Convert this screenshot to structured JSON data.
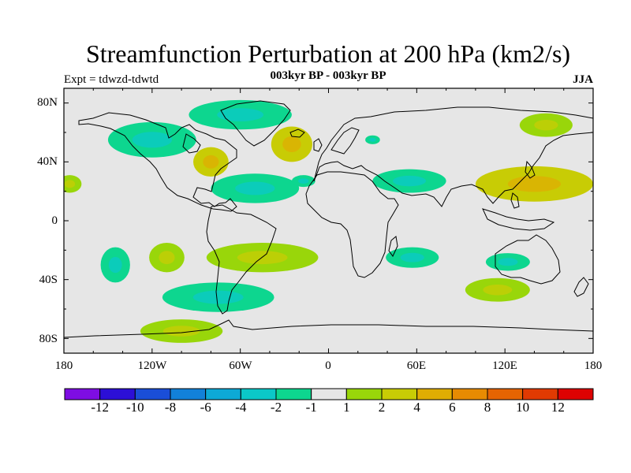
{
  "title": "Streamfunction Perturbation at 200 hPa (km2/s)",
  "left_label": "Expt = tdwzd-tdwtd",
  "center_label": "003kyr BP - 003kyr BP",
  "right_label": "JJA",
  "lat_ticks": [
    "80N",
    "40N",
    "0",
    "40S",
    "80S"
  ],
  "lon_ticks": [
    "180",
    "120W",
    "60W",
    "0",
    "60E",
    "120E",
    "180"
  ],
  "colorbar": {
    "colors": [
      "#7e0de3",
      "#2c0fd6",
      "#1a4ed8",
      "#1281d9",
      "#0da9d6",
      "#0bc8c8",
      "#0dd68f",
      "#e6e6e6",
      "#99d60a",
      "#c8cc05",
      "#dfad03",
      "#e78b02",
      "#e66402",
      "#e13a02",
      "#dd0202"
    ],
    "labels": [
      "-12",
      "-10",
      "-8",
      "-6",
      "-4",
      "-2",
      "-1",
      "1",
      "2",
      "4",
      "6",
      "8",
      "10",
      "12"
    ]
  },
  "background_color": "#e6e6e6",
  "chart_data": {
    "type": "map",
    "title": "Streamfunction Perturbation at 200 hPa (km2/s)",
    "subtitle": "003kyr BP - 003kyr BP",
    "season": "JJA",
    "xlim": [
      -180,
      180
    ],
    "ylim": [
      -90,
      90
    ],
    "levels": [
      -12,
      -10,
      -8,
      -6,
      -4,
      -2,
      -1,
      1,
      2,
      4,
      6,
      8,
      10,
      12
    ],
    "anomalies": [
      {
        "lon": -120,
        "lat": 55,
        "rx": 30,
        "ry": 12,
        "bin": -1
      },
      {
        "lon": -60,
        "lat": 72,
        "rx": 35,
        "ry": 10,
        "bin": -1
      },
      {
        "lon": -80,
        "lat": 40,
        "rx": 12,
        "ry": 10,
        "bin": 2
      },
      {
        "lon": -25,
        "lat": 52,
        "rx": 14,
        "ry": 12,
        "bin": 2
      },
      {
        "lon": -50,
        "lat": 22,
        "rx": 30,
        "ry": 10,
        "bin": -1
      },
      {
        "lon": -17,
        "lat": 27,
        "rx": 8,
        "ry": 4,
        "bin": -1
      },
      {
        "lon": 30,
        "lat": 55,
        "rx": 5,
        "ry": 3,
        "bin": -1
      },
      {
        "lon": 55,
        "lat": 27,
        "rx": 25,
        "ry": 8,
        "bin": -1
      },
      {
        "lon": 148,
        "lat": 65,
        "rx": 18,
        "ry": 8,
        "bin": 1
      },
      {
        "lon": 140,
        "lat": 25,
        "rx": 40,
        "ry": 12,
        "bin": 2
      },
      {
        "lon": -176,
        "lat": 25,
        "rx": 8,
        "ry": 6,
        "bin": 1
      },
      {
        "lon": -145,
        "lat": -30,
        "rx": 10,
        "ry": 12,
        "bin": -1
      },
      {
        "lon": -110,
        "lat": -25,
        "rx": 12,
        "ry": 10,
        "bin": 1
      },
      {
        "lon": -45,
        "lat": -25,
        "rx": 38,
        "ry": 10,
        "bin": 1
      },
      {
        "lon": 57,
        "lat": -25,
        "rx": 18,
        "ry": 7,
        "bin": -1
      },
      {
        "lon": 122,
        "lat": -28,
        "rx": 15,
        "ry": 6,
        "bin": -1
      },
      {
        "lon": 115,
        "lat": -47,
        "rx": 22,
        "ry": 8,
        "bin": 1
      },
      {
        "lon": -75,
        "lat": -52,
        "rx": 38,
        "ry": 10,
        "bin": -1
      },
      {
        "lon": -100,
        "lat": -75,
        "rx": 28,
        "ry": 8,
        "bin": 1
      }
    ]
  }
}
